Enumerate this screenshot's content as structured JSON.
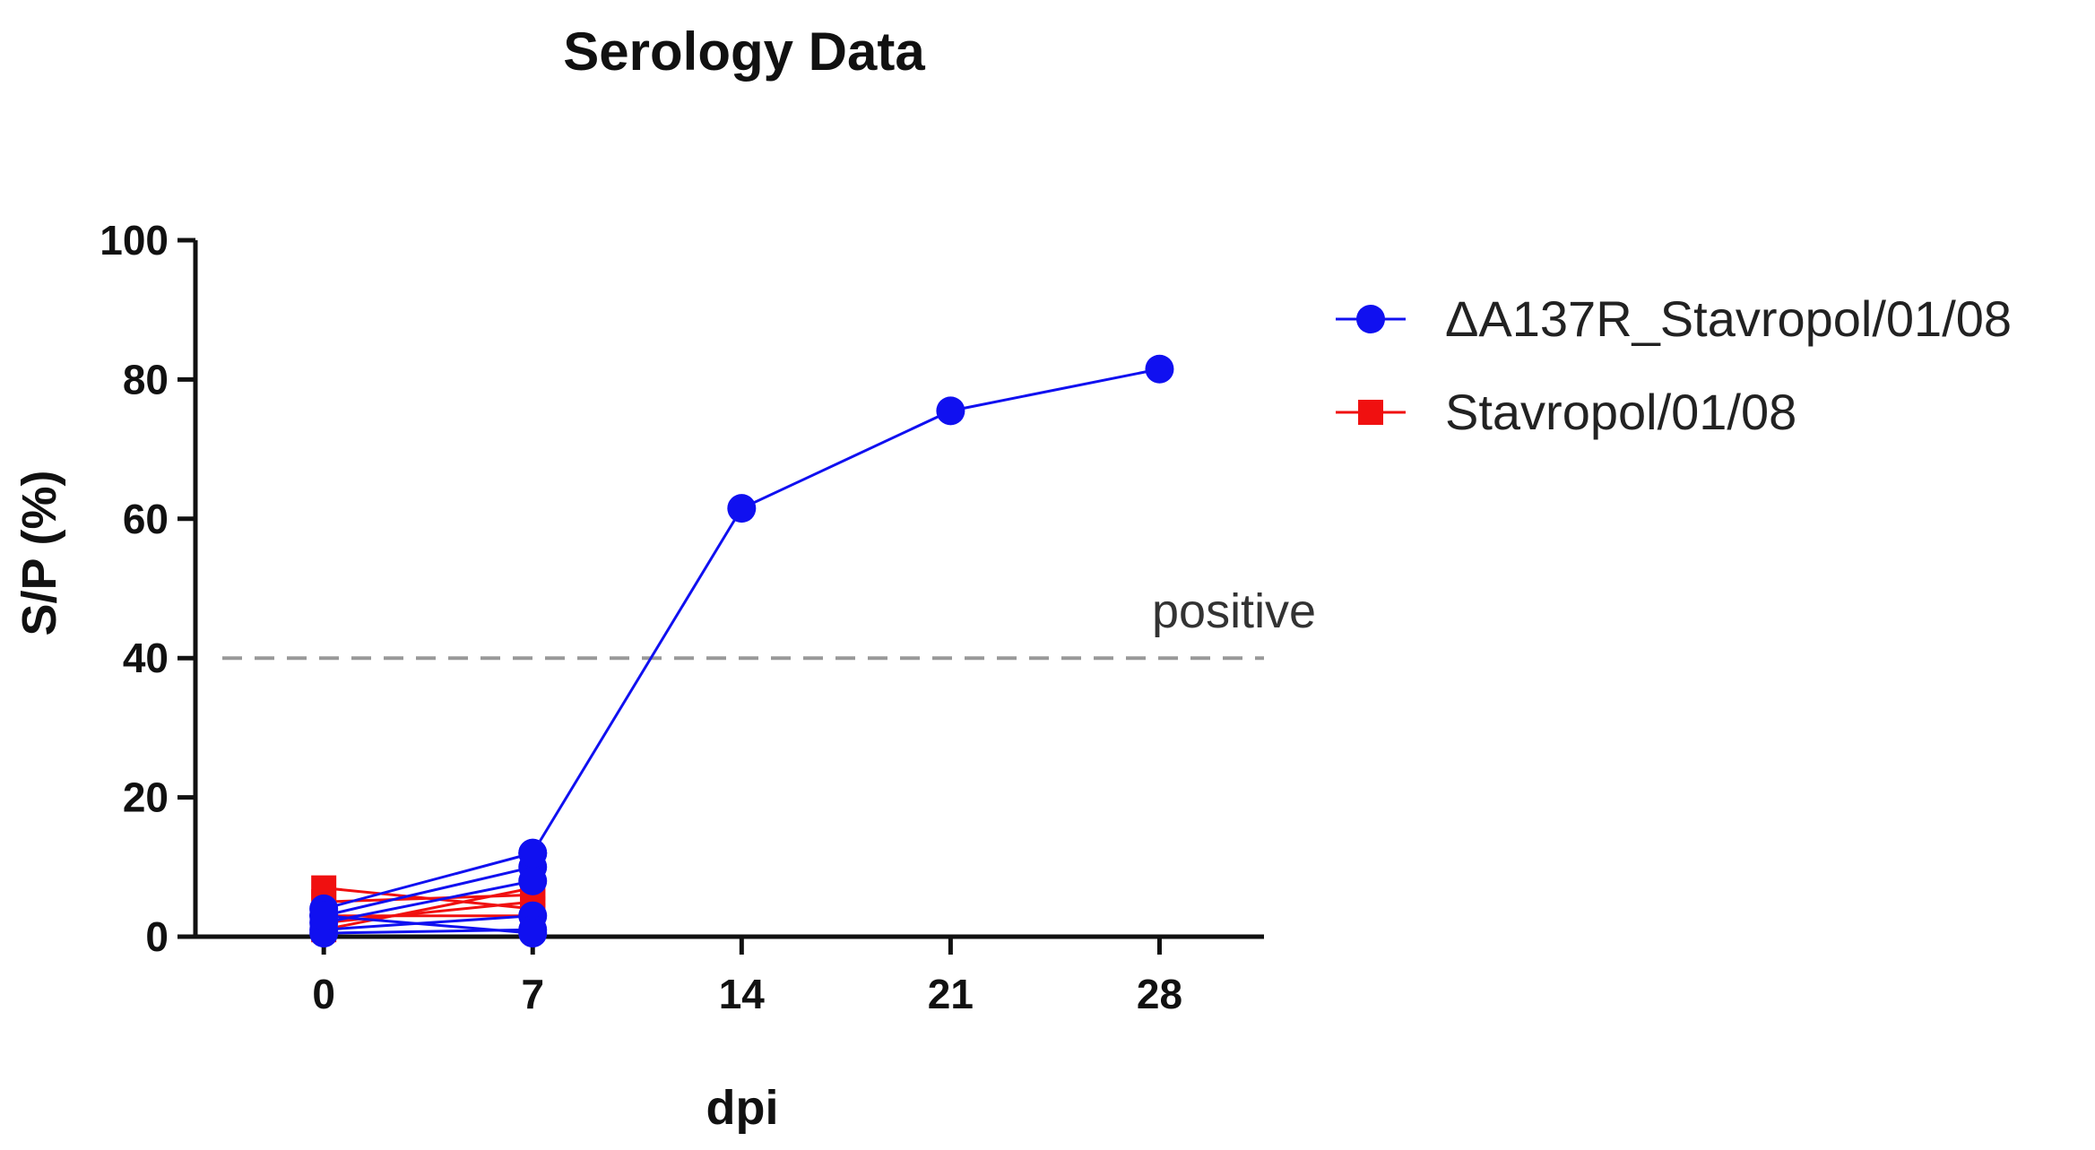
{
  "chart_data": {
    "type": "line",
    "title": "Serology Data",
    "xlabel": "dpi",
    "ylabel": "S/P (%)",
    "x_ticks": [
      0,
      7,
      14,
      21,
      28
    ],
    "x_tick_labels": [
      "0",
      "7",
      "14",
      "21",
      "28"
    ],
    "y_ticks": [
      0,
      20,
      40,
      60,
      80,
      100
    ],
    "y_tick_labels": [
      "0",
      "20",
      "40",
      "60",
      "80",
      "100"
    ],
    "xlim": [
      -4.3,
      31.5
    ],
    "ylim": [
      0,
      100
    ],
    "grid": false,
    "legend_position": "right",
    "threshold": {
      "value": 40,
      "label": "positive",
      "style": "dashed",
      "color": "#999999"
    },
    "series": [
      {
        "name": "ΔA137R_Stavropol/01/08",
        "color": "#1010F0",
        "marker": "circle",
        "individuals": [
          {
            "x": [
              0,
              7
            ],
            "y": [
              4,
              12
            ]
          },
          {
            "x": [
              0,
              7
            ],
            "y": [
              3,
              10
            ]
          },
          {
            "x": [
              0,
              7
            ],
            "y": [
              2,
              8
            ]
          },
          {
            "x": [
              0,
              7
            ],
            "y": [
              1,
              3
            ]
          },
          {
            "x": [
              0,
              7
            ],
            "y": [
              0.5,
              1
            ]
          },
          {
            "x": [
              0,
              7
            ],
            "y": [
              3,
              0.5
            ]
          }
        ],
        "mean": {
          "x": [
            7,
            14,
            21,
            28
          ],
          "y": [
            12,
            61.5,
            75.5,
            81.5
          ]
        }
      },
      {
        "name": "Stavropol/01/08",
        "color": "#F01010",
        "marker": "square",
        "individuals": [
          {
            "x": [
              0,
              7
            ],
            "y": [
              7,
              4
            ]
          },
          {
            "x": [
              0,
              7
            ],
            "y": [
              5,
              6
            ]
          },
          {
            "x": [
              0,
              7
            ],
            "y": [
              2,
              5
            ]
          },
          {
            "x": [
              0,
              7
            ],
            "y": [
              1,
              7
            ]
          },
          {
            "x": [
              0,
              7
            ],
            "y": [
              3,
              3
            ]
          }
        ]
      }
    ]
  }
}
